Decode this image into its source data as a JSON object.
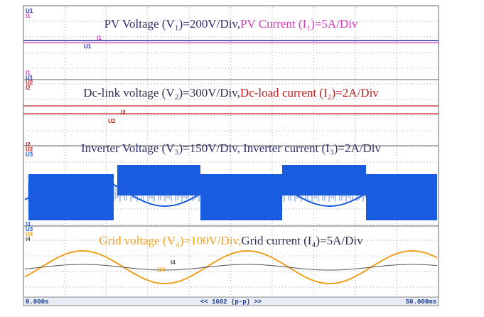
{
  "panels": [
    {
      "voltage_label": "PV Voltage (V₁)=200V/Div,",
      "current_label": "PV Current (I₁)=5A/Div",
      "channel_labels": [
        "U1",
        "I1"
      ],
      "trace_labels": [
        "I1",
        "U1"
      ]
    },
    {
      "voltage_label": "Dc-link voltage (V₂)=300V/Div,",
      "current_label": "Dc-load current (I₂)=2A/Div",
      "channel_labels": [
        "I1",
        "U1",
        "U2",
        "I2"
      ],
      "trace_labels": [
        "I2",
        "U2"
      ]
    },
    {
      "voltage_label": "Inverter Voltage (V₃)=150V/Div, Inverter current (I₃)=2A/Div",
      "channel_labels": [
        "I2",
        "U2",
        "U3"
      ],
      "trace_labels": []
    },
    {
      "voltage_label": "Grid voltage (V₄)=100V/Div,",
      "current_label": "Grid current (I₄)=5A/Div",
      "channel_labels": [
        "I3",
        "U3",
        "U4",
        "I4"
      ],
      "trace_labels": [
        "I4",
        "U4"
      ]
    }
  ],
  "status_bar": {
    "start_time": "0.000s",
    "center": "<< 1602 (p-p) >>",
    "end_time": "50.000ms"
  }
}
